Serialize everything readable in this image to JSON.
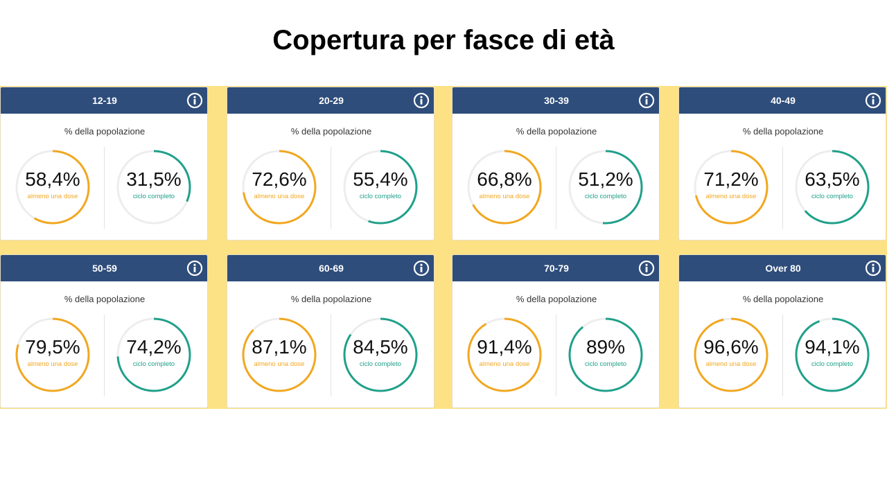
{
  "title": "Copertura per fasce di età",
  "colors": {
    "dose": "#f2a71f",
    "complete": "#1fa08a",
    "track": "#ededed",
    "header": "#2e4d7b",
    "board": "#fde285"
  },
  "chart_data": {
    "type": "gauge",
    "metric_label": "% della popolazione",
    "series": [
      {
        "name": "almeno una dose",
        "color": "#f2a71f"
      },
      {
        "name": "ciclo completo",
        "color": "#1fa08a"
      }
    ],
    "cards": [
      {
        "title": "12-19",
        "dose": {
          "value": 58.4,
          "text": "58,4%"
        },
        "complete": {
          "value": 31.5,
          "text": "31,5%"
        }
      },
      {
        "title": "20-29",
        "dose": {
          "value": 72.6,
          "text": "72,6%"
        },
        "complete": {
          "value": 55.4,
          "text": "55,4%"
        }
      },
      {
        "title": "30-39",
        "dose": {
          "value": 66.8,
          "text": "66,8%"
        },
        "complete": {
          "value": 51.2,
          "text": "51,2%"
        }
      },
      {
        "title": "40-49",
        "dose": {
          "value": 71.2,
          "text": "71,2%"
        },
        "complete": {
          "value": 63.5,
          "text": "63,5%"
        }
      },
      {
        "title": "50-59",
        "dose": {
          "value": 79.5,
          "text": "79,5%"
        },
        "complete": {
          "value": 74.2,
          "text": "74,2%"
        }
      },
      {
        "title": "60-69",
        "dose": {
          "value": 87.1,
          "text": "87,1%"
        },
        "complete": {
          "value": 84.5,
          "text": "84,5%"
        }
      },
      {
        "title": "70-79",
        "dose": {
          "value": 91.4,
          "text": "91,4%"
        },
        "complete": {
          "value": 89,
          "text": "89%"
        }
      },
      {
        "title": "Over 80",
        "dose": {
          "value": 96.6,
          "text": "96,6%"
        },
        "complete": {
          "value": 94.1,
          "text": "94,1%"
        }
      }
    ]
  }
}
